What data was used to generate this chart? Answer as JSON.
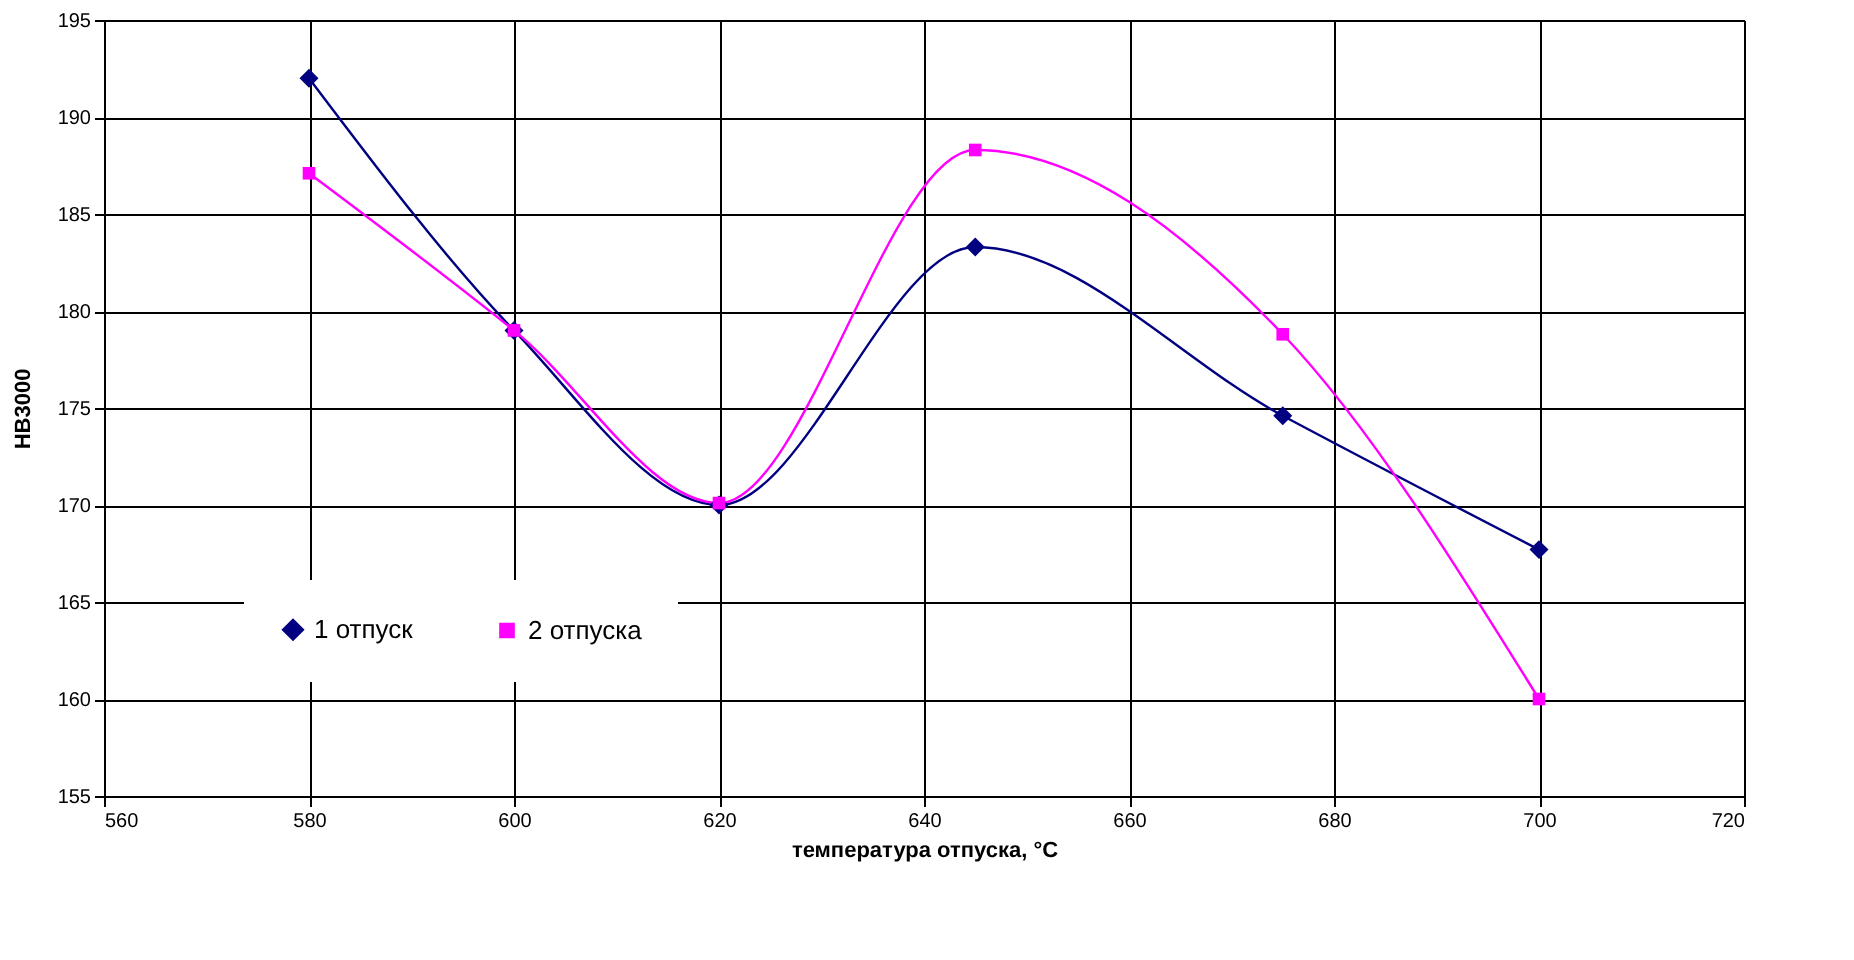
{
  "chart_data": {
    "type": "line",
    "xlabel": "температура отпуска, °C",
    "ylabel": "HB3000",
    "xlim": [
      560,
      720
    ],
    "xticks": [
      560,
      580,
      600,
      620,
      640,
      660,
      680,
      700,
      720
    ],
    "ylim": [
      155,
      195
    ],
    "yticks": [
      155,
      160,
      165,
      170,
      175,
      180,
      185,
      190,
      195
    ],
    "grid": true,
    "legend": "bottom left",
    "line_style": "solid",
    "series": [
      {
        "name": "1 отпуск",
        "color": "#000080",
        "marker": "diamond",
        "x": [
          580,
          600,
          620,
          645,
          675,
          700
        ],
        "values": [
          192,
          179,
          170,
          183.3,
          174.6,
          167.7
        ]
      },
      {
        "name": "2 отпуска",
        "color": "#ff00ff",
        "marker": "square",
        "x": [
          580,
          600,
          620,
          645,
          675,
          700
        ],
        "values": [
          187.1,
          179,
          170.1,
          188.3,
          178.8,
          160
        ]
      }
    ]
  }
}
